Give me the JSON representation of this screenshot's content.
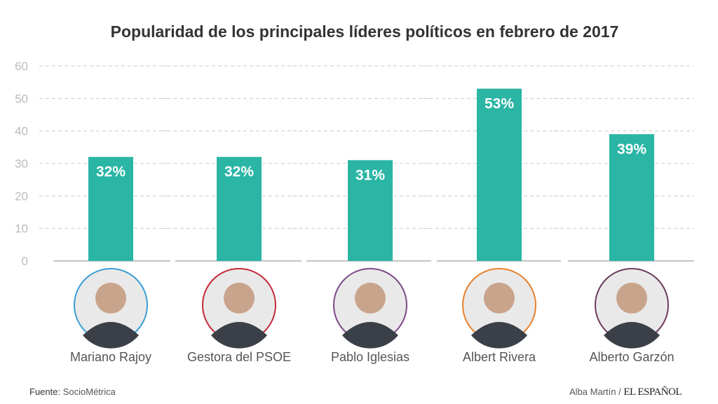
{
  "chart_data": {
    "type": "bar",
    "title": "Popularidad de los principales líderes políticos en febrero de 2017",
    "categories": [
      "Mariano Rajoy",
      "Gestora del PSOE",
      "Pablo Iglesias",
      "Albert Rivera",
      "Alberto Garzón"
    ],
    "values": [
      32,
      32,
      31,
      53,
      39
    ],
    "data_labels": [
      "32%",
      "32%",
      "31%",
      "53%",
      "39%"
    ],
    "ylim": [
      0,
      60
    ],
    "yticks": [
      "0",
      "10",
      "20",
      "30",
      "40",
      "50",
      "60"
    ],
    "grid": true,
    "xlabel": "",
    "ylabel": "",
    "bar_color": "#2ab5a5",
    "portrait_ring_colors": [
      "#3a9fd6",
      "#c42a3c",
      "#7c4a86",
      "#e8812e",
      "#6e3c5e"
    ]
  },
  "footer": {
    "source_label": "Fuente:",
    "source": "SocioMétrica",
    "author": "Alba Martín /",
    "brand": "EL ESPAÑOL"
  }
}
